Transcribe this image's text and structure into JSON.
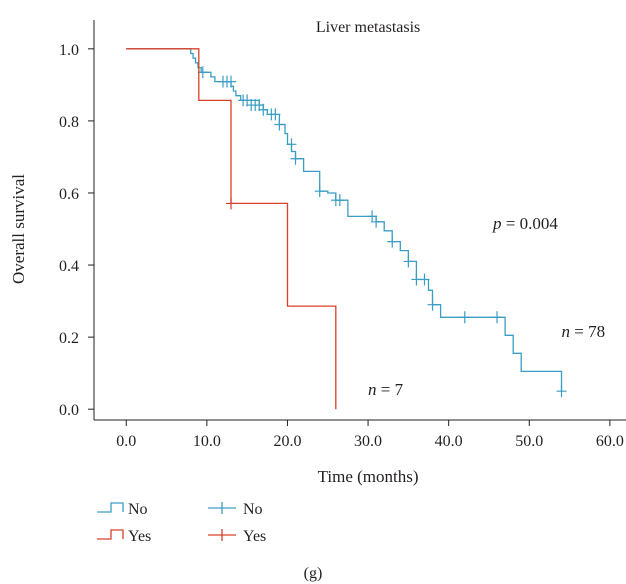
{
  "chart_data": {
    "type": "line",
    "title": "Liver metastasis",
    "xlabel": "Time (months)",
    "ylabel": "Overall survival",
    "xlim": [
      -4,
      62
    ],
    "ylim": [
      -0.03,
      1.08
    ],
    "xticks": [
      0,
      10,
      20,
      30,
      40,
      50,
      60
    ],
    "xtick_labels": [
      "0.0",
      "10.0",
      "20.0",
      "30.0",
      "40.0",
      "50.0",
      "60.0"
    ],
    "yticks": [
      0,
      0.2,
      0.4,
      0.6,
      0.8,
      1.0
    ],
    "ytick_labels": [
      "0.0",
      "0.2",
      "0.4",
      "0.6",
      "0.8",
      "1.0"
    ],
    "grid": false,
    "legend": "bottom-left",
    "legend_groups": [
      {
        "kind": "step",
        "entries": [
          "No",
          "Yes"
        ]
      },
      {
        "kind": "censor",
        "entries": [
          "No",
          "Yes"
        ]
      }
    ],
    "annotations": [
      {
        "italic": "p",
        "text": " = 0.004",
        "x": 45.5,
        "y": 0.5
      },
      {
        "italic": "n",
        "text": " = 78",
        "x": 54,
        "y": 0.2
      },
      {
        "italic": "n",
        "text": " = 7",
        "x": 30,
        "y": 0.04
      }
    ],
    "series": [
      {
        "name": "No",
        "color": "#3a9ec4",
        "steps": [
          [
            0,
            1.0
          ],
          [
            8.0,
            0.987
          ],
          [
            8.3,
            0.974
          ],
          [
            8.6,
            0.961
          ],
          [
            8.9,
            0.948
          ],
          [
            9.3,
            0.935
          ],
          [
            10.5,
            0.922
          ],
          [
            11.0,
            0.909
          ],
          [
            13.0,
            0.896
          ],
          [
            13.3,
            0.883
          ],
          [
            13.6,
            0.87
          ],
          [
            14.2,
            0.857
          ],
          [
            16.5,
            0.844
          ],
          [
            17.0,
            0.831
          ],
          [
            17.5,
            0.818
          ],
          [
            18.5,
            0.818
          ],
          [
            19.0,
            0.79
          ],
          [
            19.7,
            0.765
          ],
          [
            20.0,
            0.735
          ],
          [
            20.5,
            0.715
          ],
          [
            21.0,
            0.695
          ],
          [
            22.0,
            0.66
          ],
          [
            24.0,
            0.605
          ],
          [
            25.0,
            0.6
          ],
          [
            26.0,
            0.58
          ],
          [
            27.5,
            0.535
          ],
          [
            30.5,
            0.535
          ],
          [
            31.0,
            0.52
          ],
          [
            32.0,
            0.495
          ],
          [
            33.0,
            0.465
          ],
          [
            34.0,
            0.44
          ],
          [
            35.0,
            0.41
          ],
          [
            36.0,
            0.36
          ],
          [
            37.5,
            0.33
          ],
          [
            38.0,
            0.29
          ],
          [
            39.0,
            0.255
          ],
          [
            47.0,
            0.205
          ],
          [
            48.0,
            0.155
          ],
          [
            49.0,
            0.105
          ],
          [
            54.0,
            0.05
          ]
        ],
        "end_x": 54.0,
        "censored": [
          [
            9.5,
            0.935
          ],
          [
            12.0,
            0.909
          ],
          [
            12.5,
            0.909
          ],
          [
            13.0,
            0.909
          ],
          [
            14.5,
            0.857
          ],
          [
            15.0,
            0.857
          ],
          [
            15.5,
            0.844
          ],
          [
            16.0,
            0.844
          ],
          [
            16.5,
            0.844
          ],
          [
            17.0,
            0.831
          ],
          [
            18.0,
            0.818
          ],
          [
            18.5,
            0.818
          ],
          [
            19.0,
            0.79
          ],
          [
            20.5,
            0.735
          ],
          [
            21.0,
            0.695
          ],
          [
            24.0,
            0.605
          ],
          [
            26.0,
            0.58
          ],
          [
            26.5,
            0.58
          ],
          [
            30.5,
            0.535
          ],
          [
            31.0,
            0.52
          ],
          [
            33.0,
            0.465
          ],
          [
            35.0,
            0.41
          ],
          [
            36.0,
            0.36
          ],
          [
            37.0,
            0.36
          ],
          [
            38.0,
            0.29
          ],
          [
            42.0,
            0.255
          ],
          [
            46.0,
            0.255
          ],
          [
            54.0,
            0.05
          ]
        ]
      },
      {
        "name": "Yes",
        "color": "#d8402a",
        "steps": [
          [
            0,
            1.0
          ],
          [
            9.0,
            0.857
          ],
          [
            13.0,
            0.571
          ],
          [
            20.0,
            0.286
          ],
          [
            26.0,
            0.0
          ]
        ],
        "end_x": 26.0,
        "censored": [
          [
            13.0,
            0.571
          ]
        ]
      }
    ]
  },
  "figure_label": "(g)"
}
